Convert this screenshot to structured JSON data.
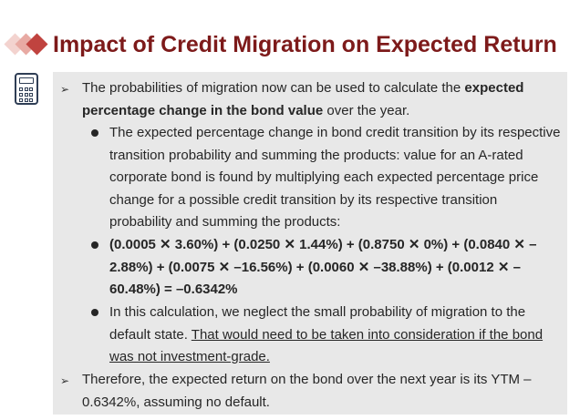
{
  "slide": {
    "title": "Impact of Credit Migration on Expected Return"
  },
  "icons": {
    "decor": "diamond-cluster-icon",
    "side": "calculator-icon"
  },
  "colors": {
    "title": "#7d1a1a",
    "content_background": "#e8e8e8",
    "diamonds": [
      "#f3d3cf",
      "#e8aaa3",
      "#c0433f"
    ]
  },
  "bullets": {
    "b1": {
      "pre": "The probabilities of migration now can be used to calculate the ",
      "bold": "expected percentage change in the bond value",
      "post": " over the year."
    },
    "s1": "The expected percentage change in bond credit transition by its respective transition probability and summing the products: value for an A-rated corporate bond is found by multiplying each expected percentage price change for a possible credit transition by its respective transition probability and summing the products:",
    "s2": "(0.0005 ✕ 3.60%) + (0.0250 ✕ 1.44%) + (0.8750 ✕ 0%) + (0.0840 ✕ –2.88%) + (0.0075 ✕ –16.56%) + (0.0060 ✕ –38.88%) + (0.0012 ✕ –60.48%) = –0.6342%",
    "s3": {
      "pre": "In this calculation, we neglect the small probability of migration to the default state. ",
      "underlined": "That would need to be taken into consideration if the bond was not investment-grade."
    },
    "b2": "Therefore, the expected return on the bond over the next year is its YTM – 0.6342%, assuming no default."
  }
}
